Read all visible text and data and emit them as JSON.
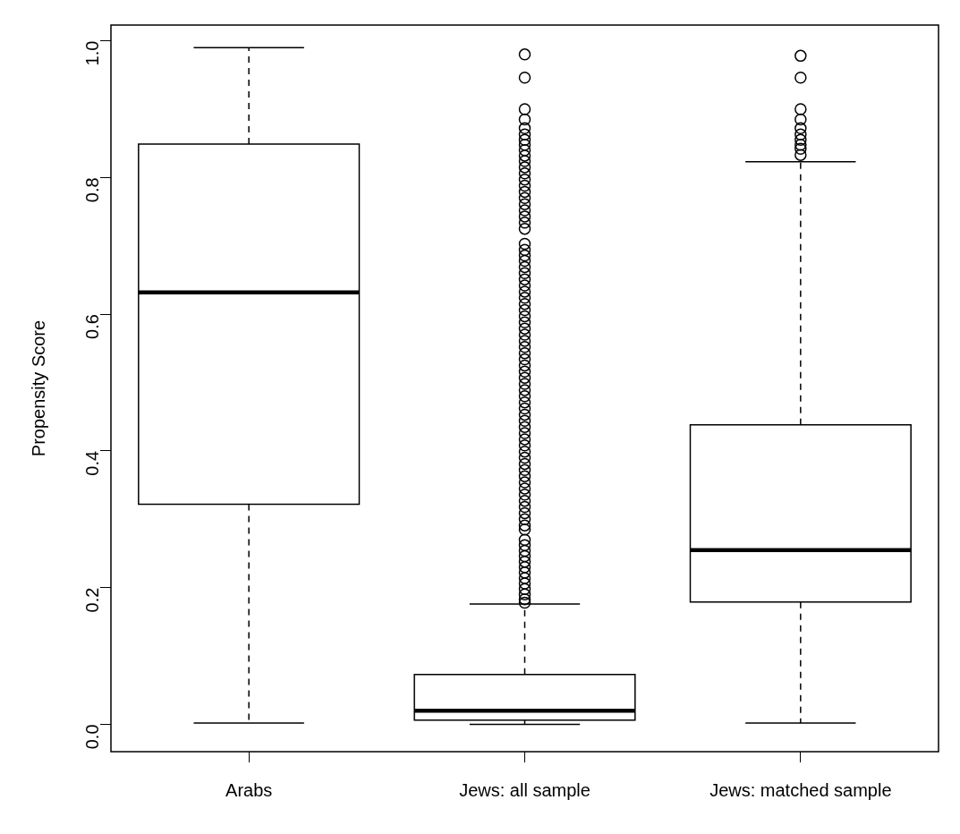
{
  "chart_data": {
    "type": "box",
    "ylabel": "Propensity Score",
    "categories": [
      "Arabs",
      "Jews: all sample",
      "Jews: matched sample"
    ],
    "boxes": [
      {
        "low": 0.002,
        "q1": 0.322,
        "median": 0.632,
        "q3": 0.849,
        "high": 0.99
      },
      {
        "low": 0.0,
        "q1": 0.006,
        "median": 0.02,
        "q3": 0.073,
        "high": 0.176,
        "outliers": [
          0.98,
          0.946,
          0.9,
          0.885,
          0.872,
          0.863,
          0.855,
          0.848,
          0.84,
          0.832,
          0.824,
          0.815,
          0.806,
          0.797,
          0.788,
          0.779,
          0.77,
          0.761,
          0.752,
          0.743,
          0.734,
          0.725,
          0.703,
          0.694,
          0.686,
          0.678,
          0.669,
          0.66,
          0.651,
          0.642,
          0.633,
          0.624,
          0.615,
          0.606,
          0.597,
          0.588,
          0.579,
          0.57,
          0.561,
          0.552,
          0.543,
          0.534,
          0.525,
          0.516,
          0.507,
          0.498,
          0.489,
          0.48,
          0.471,
          0.462,
          0.453,
          0.444,
          0.435,
          0.426,
          0.417,
          0.408,
          0.399,
          0.39,
          0.381,
          0.372,
          0.363,
          0.354,
          0.345,
          0.336,
          0.327,
          0.318,
          0.309,
          0.3,
          0.291,
          0.285,
          0.27,
          0.262,
          0.254,
          0.246,
          0.238,
          0.23,
          0.222,
          0.214,
          0.206,
          0.198,
          0.19,
          0.183,
          0.178
        ]
      },
      {
        "low": 0.002,
        "q1": 0.179,
        "median": 0.255,
        "q3": 0.438,
        "high": 0.823,
        "outliers": [
          0.978,
          0.946,
          0.9,
          0.885,
          0.872,
          0.863,
          0.855,
          0.848,
          0.842,
          0.833
        ]
      }
    ],
    "ylim": [
      -0.04,
      1.023
    ],
    "yticks": [
      {
        "value": 0,
        "label": "0.0"
      },
      0.2,
      0.4,
      0.6,
      0.8,
      {
        "value": 1,
        "label": "1.0"
      }
    ],
    "grid": false,
    "legend": false,
    "marker": "circle"
  }
}
